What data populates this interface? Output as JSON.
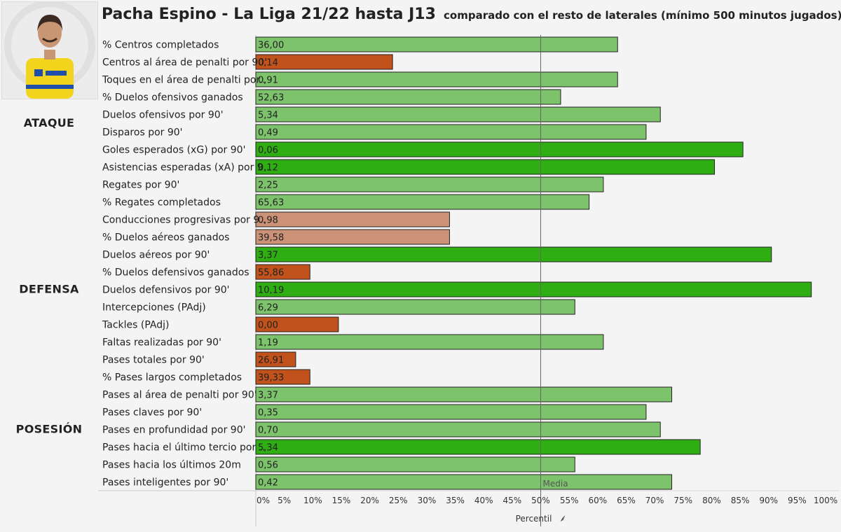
{
  "header": {
    "title": "Pacha Espino - La Liga 21/22 hasta J13",
    "subtitle": "comparado con el resto de laterales (mínimo 500 minutos jugados)"
  },
  "colors": {
    "high": "#2fae14",
    "above": "#7dc36b",
    "below": "#cc9277",
    "low": "#c2521c"
  },
  "chart_data": {
    "type": "bar",
    "orientation": "horizontal",
    "title": "Pacha Espino - La Liga 21/22 hasta J13",
    "subtitle": "comparado con el resto de laterales (mínimo 500 minutos jugados)",
    "xlabel": "Percentil",
    "xlim": [
      0,
      100
    ],
    "xticks": [
      "0%",
      "5%",
      "10%",
      "15%",
      "20%",
      "25%",
      "30%",
      "35%",
      "40%",
      "45%",
      "50%",
      "55%",
      "60%",
      "65%",
      "70%",
      "75%",
      "80%",
      "85%",
      "90%",
      "95%",
      "100%"
    ],
    "reference_line": {
      "value": 50,
      "label": "Media"
    },
    "groups": [
      {
        "name": "ATAQUE",
        "start": 0,
        "end": 9
      },
      {
        "name": "DEFENSA",
        "start": 10,
        "end": 18
      },
      {
        "name": "POSESIÓN",
        "start": 19,
        "end": 25
      }
    ],
    "bars": [
      {
        "label": "% Centros completados",
        "value_label": "36,00",
        "percentile": 63.5,
        "color": "above"
      },
      {
        "label": "Centros al área de penalti por 90'",
        "value_label": "0,14",
        "percentile": 24,
        "color": "low"
      },
      {
        "label": "Toques en el área de penalti por..",
        "value_label": "0,91",
        "percentile": 63.5,
        "color": "above"
      },
      {
        "label": "% Duelos ofensivos ganados",
        "value_label": "52,63",
        "percentile": 53.5,
        "color": "above"
      },
      {
        "label": "Duelos ofensivos por 90'",
        "value_label": "5,34",
        "percentile": 71,
        "color": "above"
      },
      {
        "label": "Disparos por 90'",
        "value_label": "0,49",
        "percentile": 68.5,
        "color": "above"
      },
      {
        "label": "Goles esperados (xG) por 90'",
        "value_label": "0,06",
        "percentile": 85.5,
        "color": "high"
      },
      {
        "label": "Asistencias esperadas (xA) por 9..",
        "value_label": "0,12",
        "percentile": 80.5,
        "color": "high"
      },
      {
        "label": "Regates por 90'",
        "value_label": "2,25",
        "percentile": 61,
        "color": "above"
      },
      {
        "label": "% Regates completados",
        "value_label": "65,63",
        "percentile": 58.5,
        "color": "above"
      },
      {
        "label": "Conducciones progresivas por 9..",
        "value_label": "0,98",
        "percentile": 34,
        "color": "below"
      },
      {
        "label": "% Duelos aéreos ganados",
        "value_label": "39,58",
        "percentile": 34,
        "color": "below"
      },
      {
        "label": "Duelos aéreos por 90'",
        "value_label": "3,37",
        "percentile": 90.5,
        "color": "high"
      },
      {
        "label": "% Duelos defensivos ganados",
        "value_label": "55,86",
        "percentile": 9.5,
        "color": "low"
      },
      {
        "label": "Duelos defensivos por 90'",
        "value_label": "10,19",
        "percentile": 97.5,
        "color": "high"
      },
      {
        "label": "Intercepciones (PAdj)",
        "value_label": "6,29",
        "percentile": 56,
        "color": "above"
      },
      {
        "label": "Tackles (PAdj)",
        "value_label": "0,00",
        "percentile": 14.5,
        "color": "low"
      },
      {
        "label": "Faltas realizadas por 90'",
        "value_label": "1,19",
        "percentile": 61,
        "color": "above"
      },
      {
        "label": "Pases totales por 90'",
        "value_label": "26,91",
        "percentile": 7,
        "color": "low"
      },
      {
        "label": "% Pases largos completados",
        "value_label": "39,33",
        "percentile": 9.5,
        "color": "low"
      },
      {
        "label": "Pases al área de penalti por 90'",
        "value_label": "3,37",
        "percentile": 73,
        "color": "above"
      },
      {
        "label": "Pases claves por 90'",
        "value_label": "0,35",
        "percentile": 68.5,
        "color": "above"
      },
      {
        "label": "Pases en profundidad por 90'",
        "value_label": "0,70",
        "percentile": 71,
        "color": "above"
      },
      {
        "label": "Pases hacia el último tercio por ..",
        "value_label": "5,34",
        "percentile": 78,
        "color": "high"
      },
      {
        "label": "Pases hacia los últimos 20m",
        "value_label": "0,56",
        "percentile": 56,
        "color": "above"
      },
      {
        "label": "Pases inteligentes por 90'",
        "value_label": "0,42",
        "percentile": 73,
        "color": "above"
      }
    ]
  }
}
